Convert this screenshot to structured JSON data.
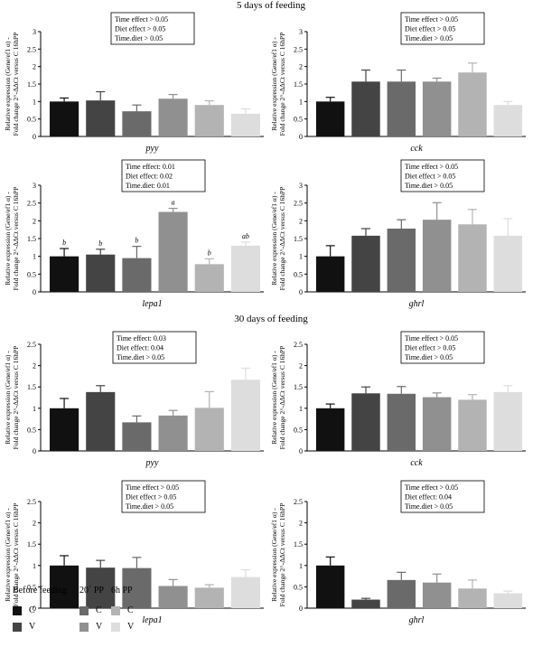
{
  "sections": [
    "5 days of feeding",
    "30 days of feeding"
  ],
  "y_axis_label_lines": [
    "Relative expression (Gene/ef1 α) -",
    "Fold change 2^-ΔΔCt versus C 16hPP"
  ],
  "colors": [
    "#111111",
    "#444444",
    "#6a6a6a",
    "#909090",
    "#b3b3b3",
    "#dddddd"
  ],
  "legend": {
    "groups": [
      "Before feeding",
      "20´ PP",
      "6h PP"
    ],
    "items": [
      {
        "label": "C",
        "color": "#111111"
      },
      {
        "label": "V",
        "color": "#444444"
      },
      {
        "label": "C",
        "color": "#6a6a6a"
      },
      {
        "label": "V",
        "color": "#909090"
      },
      {
        "label": "C",
        "color": "#b3b3b3"
      },
      {
        "label": "V",
        "color": "#dddddd"
      }
    ]
  },
  "chart_data": [
    {
      "type": "bar",
      "section": "5 days of feeding",
      "xlabel": "pyy",
      "ylim": [
        0,
        3
      ],
      "yticks": [
        "0",
        "0.5",
        "1",
        "1.5",
        "2",
        "2.5",
        "3"
      ],
      "values": [
        1.0,
        1.03,
        0.72,
        1.08,
        0.9,
        0.65
      ],
      "errors": [
        0.1,
        0.25,
        0.18,
        0.12,
        0.12,
        0.14
      ],
      "stats": [
        "Time effect > 0.05",
        "Diet effect > 0.05",
        "Time.diet > 0.05"
      ]
    },
    {
      "type": "bar",
      "section": "5 days of feeding",
      "xlabel": "cck",
      "ylim": [
        0,
        3
      ],
      "yticks": [
        "0",
        "0.5",
        "1",
        "1.5",
        "2",
        "2.5",
        "3"
      ],
      "values": [
        1.0,
        1.57,
        1.57,
        1.57,
        1.83,
        0.9
      ],
      "errors": [
        0.12,
        0.33,
        0.33,
        0.1,
        0.27,
        0.1
      ],
      "stats": [
        "Time effect > 0.05",
        "Diet effect > 0.05",
        "Time.diet > 0.05"
      ]
    },
    {
      "type": "bar",
      "section": "5 days of feeding",
      "xlabel": "lepa1",
      "ylim": [
        0,
        3
      ],
      "yticks": [
        "0",
        "0.5",
        "1",
        "1.5",
        "2",
        "2.5",
        "3"
      ],
      "values": [
        1.0,
        1.05,
        0.95,
        2.25,
        0.78,
        1.3
      ],
      "errors": [
        0.22,
        0.15,
        0.33,
        0.1,
        0.15,
        0.1
      ],
      "letters": [
        "b",
        "b",
        "b",
        "a",
        "b",
        "ab"
      ],
      "stats": [
        "Time effect: 0.01",
        "Diet effect: 0.02",
        "Time.diet: 0.01"
      ]
    },
    {
      "type": "bar",
      "section": "5 days of feeding",
      "xlabel": "ghrl",
      "ylim": [
        0,
        3
      ],
      "yticks": [
        "0",
        "0.5",
        "1",
        "1.5",
        "2",
        "2.5",
        "3"
      ],
      "values": [
        1.0,
        1.58,
        1.78,
        2.03,
        1.9,
        1.58
      ],
      "errors": [
        0.3,
        0.2,
        0.25,
        0.48,
        0.42,
        0.48
      ],
      "stats": [
        "Time effect > 0.05",
        "Diet effect > 0.05",
        "Time.diet > 0.05"
      ]
    },
    {
      "type": "bar",
      "section": "30 days of feeding",
      "xlabel": "pyy",
      "ylim": [
        0,
        2.5
      ],
      "yticks": [
        "0",
        "0.5",
        "1",
        "1.5",
        "2",
        "2.5"
      ],
      "values": [
        1.0,
        1.38,
        0.67,
        0.83,
        1.01,
        1.67
      ],
      "errors": [
        0.23,
        0.15,
        0.15,
        0.12,
        0.38,
        0.27
      ],
      "stats": [
        "Time effect: 0.03",
        "Diet effect: 0.04",
        "Time.diet > 0.05"
      ]
    },
    {
      "type": "bar",
      "section": "30 days of feeding",
      "xlabel": "cck",
      "ylim": [
        0,
        2.5
      ],
      "yticks": [
        "0",
        "0.5",
        "1",
        "1.5",
        "2",
        "2.5"
      ],
      "values": [
        1.0,
        1.35,
        1.34,
        1.26,
        1.2,
        1.38
      ],
      "errors": [
        0.1,
        0.15,
        0.17,
        0.1,
        0.12,
        0.15
      ],
      "stats": [
        "Time effect > 0.05",
        "Diet effect > 0.05",
        "Time.diet > 0.05"
      ]
    },
    {
      "type": "bar",
      "section": "30 days of feeding",
      "xlabel": "lepa1",
      "ylim": [
        0,
        2.5
      ],
      "yticks": [
        "0",
        "0.5",
        "1",
        "1.5",
        "2",
        "2.5"
      ],
      "values": [
        1.0,
        0.95,
        0.94,
        0.52,
        0.48,
        0.73
      ],
      "errors": [
        0.23,
        0.17,
        0.25,
        0.15,
        0.07,
        0.17
      ],
      "stats": [
        "Time effect > 0.05",
        "Diet effect > 0.05",
        "Time.diet > 0.05"
      ]
    },
    {
      "type": "bar",
      "section": "30 days of feeding",
      "xlabel": "ghrl",
      "ylim": [
        0,
        2.5
      ],
      "yticks": [
        "0",
        "0.5",
        "1",
        "1.5",
        "2",
        "2.5"
      ],
      "values": [
        1.0,
        0.2,
        0.66,
        0.6,
        0.46,
        0.35
      ],
      "errors": [
        0.2,
        0.03,
        0.18,
        0.2,
        0.2,
        0.05
      ],
      "stats": [
        "Time effect > 0.05",
        "Diet effect: 0.04",
        "Time.diet > 0.05"
      ]
    }
  ]
}
